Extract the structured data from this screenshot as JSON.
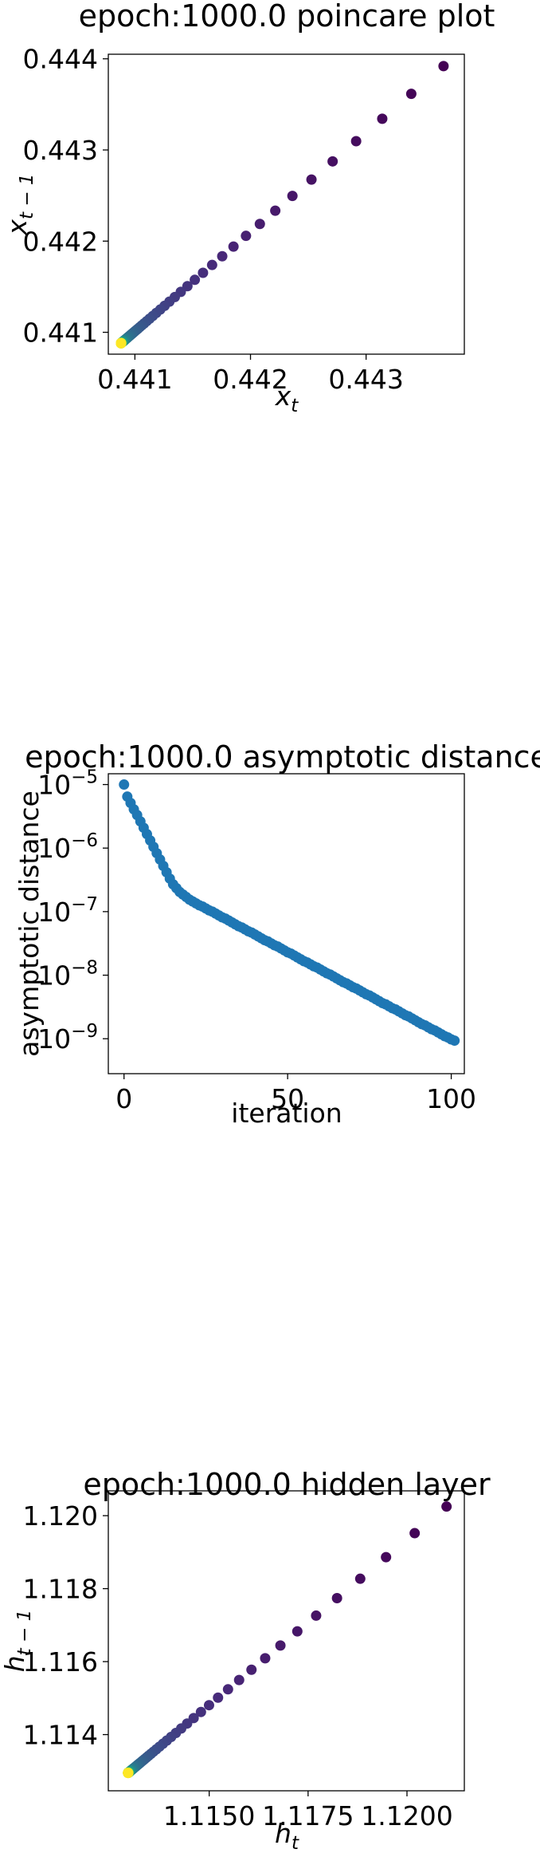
{
  "chart_data": [
    {
      "type": "scatter",
      "title": "epoch:1000.0 poincare plot",
      "xlabel": {
        "base": "x",
        "sub": "t"
      },
      "ylabel": {
        "base": "x",
        "sub": "t − 1"
      },
      "xlim": [
        0.44077,
        0.44385
      ],
      "ylim": [
        0.44076,
        0.44405
      ],
      "xticks": [
        {
          "v": 0.441,
          "label": "0.441"
        },
        {
          "v": 0.442,
          "label": "0.442"
        },
        {
          "v": 0.443,
          "label": "0.443"
        }
      ],
      "yticks": [
        {
          "v": 0.441,
          "label": "0.441"
        },
        {
          "v": 0.442,
          "label": "0.442"
        },
        {
          "v": 0.443,
          "label": "0.443"
        },
        {
          "v": 0.444,
          "label": "0.444"
        }
      ],
      "colormap": "viridis",
      "color_order": "earliest point dark purple, converging point yellow",
      "series_model": {
        "kind": "geometric_convergence",
        "start_x": 0.44367,
        "start_y": 0.44392,
        "limit": 0.44088,
        "ratio": 0.9,
        "count": 100
      }
    },
    {
      "type": "scatter",
      "title": "epoch:1000.0 asymptotic distance",
      "xlabel": "iteration",
      "ylabel": "asymptotic distance",
      "y_scale": "log",
      "xlim": [
        -4.8,
        104
      ],
      "ylim_log10": [
        -9.55,
        -4.83
      ],
      "xticks": [
        {
          "v": 0,
          "label": "0"
        },
        {
          "v": 50,
          "label": "50"
        },
        {
          "v": 100,
          "label": "100"
        }
      ],
      "yticks": [
        {
          "v": -5,
          "base": "10",
          "exp": "−5"
        },
        {
          "v": -6,
          "base": "10",
          "exp": "−6"
        },
        {
          "v": -7,
          "base": "10",
          "exp": "−7"
        },
        {
          "v": -8,
          "base": "10",
          "exp": "−8"
        },
        {
          "v": -9,
          "base": "10",
          "exp": "−9"
        }
      ],
      "color": "#1f77b4",
      "log10_values": [
        -5.0,
        -5.19,
        -5.29,
        -5.39,
        -5.48,
        -5.58,
        -5.68,
        -5.78,
        -5.88,
        -5.98,
        -6.08,
        -6.18,
        -6.28,
        -6.38,
        -6.48,
        -6.57,
        -6.63,
        -6.69,
        -6.73,
        -6.77,
        -6.81,
        -6.84,
        -6.87,
        -6.9,
        -6.92,
        -6.95,
        -6.98,
        -7.0,
        -7.03,
        -7.06,
        -7.09,
        -7.11,
        -7.14,
        -7.17,
        -7.2,
        -7.23,
        -7.25,
        -7.28,
        -7.31,
        -7.33,
        -7.36,
        -7.39,
        -7.42,
        -7.45,
        -7.47,
        -7.5,
        -7.53,
        -7.55,
        -7.58,
        -7.61,
        -7.64,
        -7.66,
        -7.69,
        -7.72,
        -7.75,
        -7.78,
        -7.8,
        -7.83,
        -7.86,
        -7.88,
        -7.91,
        -7.94,
        -7.97,
        -7.99,
        -8.02,
        -8.05,
        -8.08,
        -8.11,
        -8.13,
        -8.16,
        -8.19,
        -8.21,
        -8.24,
        -8.27,
        -8.3,
        -8.32,
        -8.35,
        -8.38,
        -8.41,
        -8.44,
        -8.46,
        -8.49,
        -8.52,
        -8.54,
        -8.57,
        -8.6,
        -8.63,
        -8.65,
        -8.68,
        -8.71,
        -8.74,
        -8.77,
        -8.79,
        -8.82,
        -8.85,
        -8.87,
        -8.9,
        -8.93,
        -8.96,
        -8.98,
        -9.01,
        -9.03
      ]
    },
    {
      "type": "scatter",
      "title": "epoch:1000.0 hidden layer",
      "xlabel": {
        "base": "h",
        "sub": "t"
      },
      "ylabel": {
        "base": "h",
        "sub": "t − 1"
      },
      "xlim": [
        1.11245,
        1.12145
      ],
      "ylim": [
        1.11246,
        1.12068
      ],
      "xticks": [
        {
          "v": 1.115,
          "label": "1.1150"
        },
        {
          "v": 1.1175,
          "label": "1.1175"
        },
        {
          "v": 1.12,
          "label": "1.1200"
        }
      ],
      "yticks": [
        {
          "v": 1.114,
          "label": "1.114"
        },
        {
          "v": 1.116,
          "label": "1.116"
        },
        {
          "v": 1.118,
          "label": "1.118"
        },
        {
          "v": 1.12,
          "label": "1.120"
        }
      ],
      "colormap": "viridis",
      "color_order": "earliest point dark purple, converging point yellow",
      "series_model": {
        "kind": "geometric_convergence",
        "start_x": 1.121,
        "start_y": 1.12025,
        "limit": 1.11295,
        "ratio": 0.9,
        "count": 100
      }
    }
  ]
}
